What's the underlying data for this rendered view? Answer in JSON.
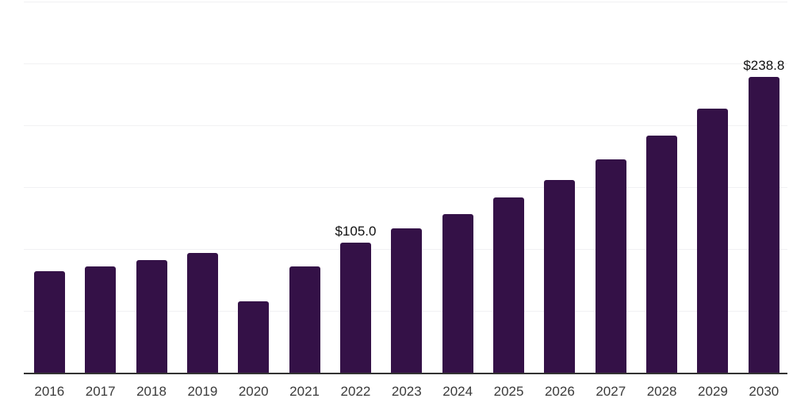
{
  "chart_data": {
    "type": "bar",
    "title": "",
    "xlabel": "",
    "ylabel": "",
    "categories": [
      "2016",
      "2017",
      "2018",
      "2019",
      "2020",
      "2021",
      "2022",
      "2023",
      "2024",
      "2025",
      "2026",
      "2027",
      "2028",
      "2029",
      "2030"
    ],
    "values": [
      82.0,
      86.0,
      91.0,
      97.0,
      57.5,
      85.8,
      105.0,
      116.5,
      128.0,
      141.5,
      156.0,
      172.5,
      191.5,
      213.5,
      238.8
    ],
    "data_labels": {
      "2022": "$105.0",
      "2030": "$238.8"
    },
    "ylim": [
      0,
      300
    ],
    "grid_step": 50,
    "grid_axis": "y",
    "y_axis_labels_visible": false,
    "legend_position": "none",
    "colors": {
      "bar": "#341147",
      "grid_line": "#f1f1f3",
      "axis_line": "#333333",
      "tick_label": "#3a3a3a",
      "data_label": "#111111",
      "background": "#ffffff"
    }
  }
}
